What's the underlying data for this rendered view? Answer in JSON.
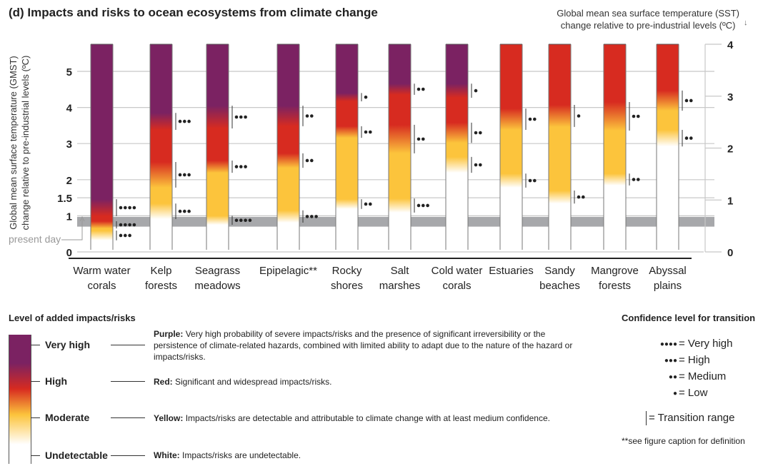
{
  "title": "(d) Impacts and risks to ocean ecosystems from climate change",
  "chart_data": {
    "type": "burning-ember",
    "ylabel_left": [
      "Global mean surface temperature (GMST)",
      "change relative to pre-industrial levels (ºC)"
    ],
    "ylabel_right": [
      "Global mean sea surface temperature (SST)",
      "change relative to pre-industrial levels (ºC)"
    ],
    "left_ticks": [
      "0",
      "1",
      "1.5",
      "2",
      "3",
      "4",
      "5"
    ],
    "left_tick_values": [
      0,
      1,
      1.5,
      2,
      3,
      4,
      5
    ],
    "right_ticks": [
      "0",
      "1",
      "2",
      "3",
      "4"
    ],
    "right_tick_values": [
      0,
      1,
      2,
      3,
      4
    ],
    "ylim_left": [
      0,
      5.7
    ],
    "ylim_right": [
      0,
      4
    ],
    "grid": true,
    "present_day_label": "present day",
    "present_day_range": [
      0.7,
      0.97
    ],
    "colors": {
      "white": "#ffffff",
      "yellow": "#fcc43c",
      "red": "#d72b20",
      "purple": "#7b2262"
    },
    "embers": [
      {
        "name": [
          "Warm water",
          "corals"
        ],
        "transitions": [
          {
            "to": "yellow",
            "from_t": 0.32,
            "to_t": 0.59,
            "confidence": 3
          },
          {
            "to": "red",
            "from_t": 0.65,
            "to_t": 0.85,
            "confidence": 4
          },
          {
            "to": "purple",
            "from_t": 0.99,
            "to_t": 1.46,
            "confidence": 4
          }
        ]
      },
      {
        "name": [
          "Kelp",
          "forests"
        ],
        "transitions": [
          {
            "to": "yellow",
            "from_t": 0.91,
            "to_t": 1.34,
            "confidence": 3
          },
          {
            "to": "red",
            "from_t": 1.78,
            "to_t": 2.49,
            "confidence": 3
          },
          {
            "to": "purple",
            "from_t": 3.38,
            "to_t": 3.85,
            "confidence": 3
          }
        ]
      },
      {
        "name": [
          "Seagrass",
          "meadows"
        ],
        "transitions": [
          {
            "to": "yellow",
            "from_t": 0.75,
            "to_t": 1.0,
            "confidence": 4
          },
          {
            "to": "red",
            "from_t": 2.19,
            "to_t": 2.53,
            "confidence": 3
          },
          {
            "to": "purple",
            "from_t": 3.42,
            "to_t": 4.05,
            "confidence": 3
          }
        ]
      },
      {
        "name": [
          "Epipelagic**"
        ],
        "transitions": [
          {
            "to": "yellow",
            "from_t": 0.81,
            "to_t": 1.15,
            "confidence": 3
          },
          {
            "to": "red",
            "from_t": 2.33,
            "to_t": 2.73,
            "confidence": 2
          },
          {
            "to": "purple",
            "from_t": 3.48,
            "to_t": 4.05,
            "confidence": 2
          }
        ]
      },
      {
        "name": [
          "Rocky",
          "shores"
        ],
        "transitions": [
          {
            "to": "yellow",
            "from_t": 1.19,
            "to_t": 1.46,
            "confidence": 2
          },
          {
            "to": "red",
            "from_t": 3.16,
            "to_t": 3.48,
            "confidence": 2
          },
          {
            "to": "purple",
            "from_t": 4.17,
            "to_t": 4.4,
            "confidence": 1
          }
        ]
      },
      {
        "name": [
          "Salt",
          "marshes"
        ],
        "transitions": [
          {
            "to": "yellow",
            "from_t": 1.09,
            "to_t": 1.48,
            "confidence": 3
          },
          {
            "to": "red",
            "from_t": 2.73,
            "to_t": 3.52,
            "confidence": 2
          },
          {
            "to": "purple",
            "from_t": 4.35,
            "to_t": 4.66,
            "confidence": 2
          }
        ]
      },
      {
        "name": [
          "Cold water",
          "corals"
        ],
        "transitions": [
          {
            "to": "yellow",
            "from_t": 2.19,
            "to_t": 2.63,
            "confidence": 2
          },
          {
            "to": "red",
            "from_t": 3.02,
            "to_t": 3.58,
            "confidence": 2
          },
          {
            "to": "purple",
            "from_t": 4.27,
            "to_t": 4.66,
            "confidence": 1
          }
        ]
      },
      {
        "name": [
          "Estuaries"
        ],
        "transitions": [
          {
            "to": "yellow",
            "from_t": 1.78,
            "to_t": 2.17,
            "confidence": 2
          },
          {
            "to": "red",
            "from_t": 3.38,
            "to_t": 3.97,
            "confidence": 2
          }
        ]
      },
      {
        "name": [
          "Sandy",
          "beaches"
        ],
        "transitions": [
          {
            "to": "yellow",
            "from_t": 1.34,
            "to_t": 1.7,
            "confidence": 2
          },
          {
            "to": "red",
            "from_t": 3.46,
            "to_t": 4.07,
            "confidence": 1
          }
        ]
      },
      {
        "name": [
          "Mangrove",
          "forests"
        ],
        "transitions": [
          {
            "to": "yellow",
            "from_t": 1.84,
            "to_t": 2.17,
            "confidence": 2
          },
          {
            "to": "red",
            "from_t": 3.36,
            "to_t": 4.15,
            "confidence": 2
          }
        ]
      },
      {
        "name": [
          "Abyssal",
          "plains"
        ],
        "transitions": [
          {
            "to": "yellow",
            "from_t": 2.92,
            "to_t": 3.38,
            "confidence": 2
          },
          {
            "to": "red",
            "from_t": 3.91,
            "to_t": 4.47,
            "confidence": 2
          }
        ]
      }
    ]
  },
  "legend": {
    "title": "Level of added impacts/risks",
    "levels": [
      {
        "label": "Very high",
        "key": "Purple:",
        "desc": "Very high probability of severe impacts/risks and the presence of significant irreversibility or the persistence of climate-related hazards, combined with limited ability to adapt due to the nature of the hazard or impacts/risks."
      },
      {
        "label": "High",
        "key": "Red:",
        "desc": "Significant and widespread impacts/risks."
      },
      {
        "label": "Moderate",
        "key": "Yellow:",
        "desc": "Impacts/risks are detectable and attributable to climate change with at least medium confidence."
      },
      {
        "label": "Undetectable",
        "key": "White:",
        "desc": "Impacts/risks are undetectable."
      }
    ]
  },
  "confidence": {
    "title": "Confidence level for transition",
    "items": [
      {
        "dots": "●●●●",
        "label": "= Very high"
      },
      {
        "dots": "●●●",
        "label": "= High"
      },
      {
        "dots": "●●",
        "label": "= Medium"
      },
      {
        "dots": "●",
        "label": "= Low"
      }
    ],
    "range_label": "= Transition range",
    "note": "**see figure caption for definition"
  }
}
